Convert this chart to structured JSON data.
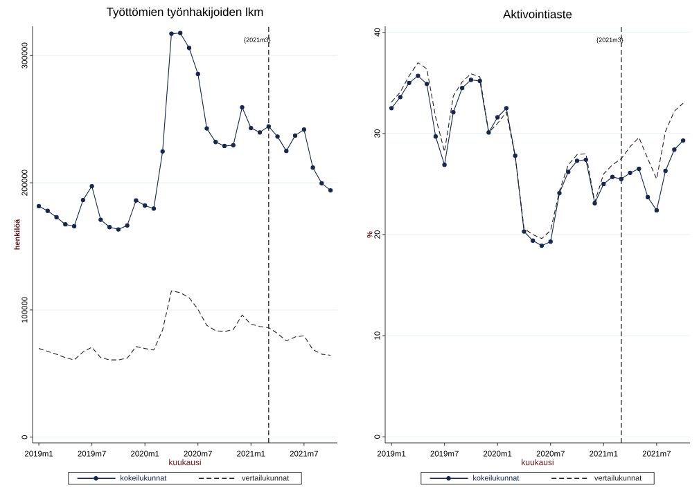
{
  "chart_data": [
    {
      "type": "line",
      "title": "Työttömien työnhakijoiden lkm",
      "xlabel": "kuukausi",
      "ylabel": "henkilöä",
      "x": [
        "2019-01",
        "2019-02",
        "2019-03",
        "2019-04",
        "2019-05",
        "2019-06",
        "2019-07",
        "2019-08",
        "2019-09",
        "2019-10",
        "2019-11",
        "2019-12",
        "2020-01",
        "2020-02",
        "2020-03",
        "2020-04",
        "2020-05",
        "2020-06",
        "2020-07",
        "2020-08",
        "2020-09",
        "2020-10",
        "2020-11",
        "2020-12",
        "2021-01",
        "2021-02",
        "2021-03",
        "2021-04",
        "2021-05",
        "2021-06",
        "2021-07",
        "2021-08",
        "2021-09",
        "2021-10"
      ],
      "series": [
        {
          "name": "kokeilukunnat",
          "color": "#142850",
          "marker": "circle",
          "line_style": "solid",
          "values": [
            181600,
            177900,
            172900,
            167300,
            165800,
            186400,
            197300,
            170900,
            165100,
            163300,
            166400,
            186100,
            182100,
            179700,
            224600,
            317200,
            317700,
            306000,
            285500,
            242700,
            232000,
            228900,
            229500,
            259300,
            243000,
            239600,
            244300,
            236300,
            225000,
            237100,
            241800,
            211900,
            199600,
            194000
          ]
        },
        {
          "name": "vertailukunnat",
          "color": "#222222",
          "marker": "none",
          "line_style": "dashed",
          "values": [
            69700,
            67400,
            65200,
            62500,
            60700,
            67000,
            70700,
            62500,
            60700,
            60700,
            62100,
            71200,
            69700,
            68500,
            84200,
            115000,
            113600,
            109600,
            100500,
            87900,
            83700,
            83000,
            84600,
            96000,
            88800,
            87000,
            86100,
            81500,
            75700,
            78800,
            79700,
            68800,
            65200,
            64300
          ]
        }
      ],
      "xlim": [
        "2018-12-10",
        "2021-10-25"
      ],
      "ylim": [
        -4500,
        323000
      ],
      "xticks": [
        {
          "value": "2019-01",
          "label": "2019m1"
        },
        {
          "value": "2019-07",
          "label": "2019m7"
        },
        {
          "value": "2020-01",
          "label": "2020m1"
        },
        {
          "value": "2020-07",
          "label": "2020m7"
        },
        {
          "value": "2021-01",
          "label": "2021m1"
        },
        {
          "value": "2021-07",
          "label": "2021m7"
        }
      ],
      "yticks": [
        0,
        100000,
        200000,
        300000
      ],
      "grid": "y",
      "legend": "bottom",
      "ref_lines": [
        {
          "axis": "x",
          "value": "2021-03",
          "label": "{2021m3}",
          "color": "#222222",
          "line_style": "dashed"
        }
      ]
    },
    {
      "type": "line",
      "title": "Aktivointiaste",
      "xlabel": "kuukausi",
      "ylabel": "%",
      "x": [
        "2019-01",
        "2019-02",
        "2019-03",
        "2019-04",
        "2019-05",
        "2019-06",
        "2019-07",
        "2019-08",
        "2019-09",
        "2019-10",
        "2019-11",
        "2019-12",
        "2020-01",
        "2020-02",
        "2020-03",
        "2020-04",
        "2020-05",
        "2020-06",
        "2020-07",
        "2020-08",
        "2020-09",
        "2020-10",
        "2020-11",
        "2020-12",
        "2021-01",
        "2021-02",
        "2021-03",
        "2021-04",
        "2021-05",
        "2021-06",
        "2021-07",
        "2021-08",
        "2021-09",
        "2021-10"
      ],
      "series": [
        {
          "name": "kokeilukunnat",
          "color": "#142850",
          "marker": "circle",
          "line_style": "solid",
          "values": [
            32.5,
            33.6,
            35.0,
            35.7,
            34.9,
            29.7,
            26.9,
            32.1,
            34.5,
            35.3,
            35.2,
            30.1,
            31.6,
            32.5,
            27.8,
            20.3,
            19.4,
            18.9,
            19.3,
            24.1,
            26.2,
            27.3,
            27.4,
            23.1,
            25.0,
            25.7,
            25.5,
            26.1,
            26.5,
            23.7,
            22.4,
            26.3,
            28.4,
            29.3
          ]
        },
        {
          "name": "vertailukunnat",
          "color": "#222222",
          "marker": "none",
          "line_style": "dashed",
          "values": [
            33.1,
            34.1,
            35.7,
            37.0,
            36.4,
            31.6,
            28.2,
            33.7,
            35.1,
            35.9,
            35.6,
            30.1,
            31.0,
            32.1,
            27.7,
            20.6,
            20.0,
            19.6,
            20.4,
            24.3,
            26.9,
            27.9,
            28.0,
            23.2,
            26.0,
            26.9,
            27.5,
            28.7,
            29.6,
            27.5,
            25.5,
            30.2,
            32.2,
            33.0
          ]
        }
      ],
      "xlim": [
        "2018-12-10",
        "2021-10-25"
      ],
      "ylim": [
        -0.6,
        40.6
      ],
      "xticks": [
        {
          "value": "2019-01",
          "label": "2019m1"
        },
        {
          "value": "2019-07",
          "label": "2019m7"
        },
        {
          "value": "2020-01",
          "label": "2020m1"
        },
        {
          "value": "2020-07",
          "label": "2020m7"
        },
        {
          "value": "2021-01",
          "label": "2021m1"
        },
        {
          "value": "2021-07",
          "label": "2021m7"
        }
      ],
      "yticks": [
        0,
        10,
        20,
        30,
        40
      ],
      "grid": "y",
      "legend": "bottom",
      "ref_lines": [
        {
          "axis": "x",
          "value": "2021-03",
          "label": "{2021m3}",
          "color": "#222222",
          "line_style": "dashed"
        }
      ]
    }
  ]
}
